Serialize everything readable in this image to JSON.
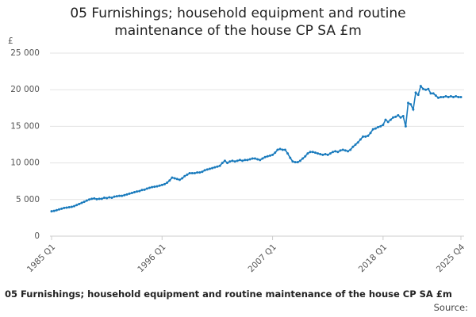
{
  "chart_data": {
    "type": "line",
    "title": "05 Furnishings; household equipment and routine maintenance of the house CP SA £m",
    "y_label": "£",
    "footer": "05 Furnishings; household equipment and routine maintenance of the house CP SA £m",
    "source": "Source:",
    "categories": [
      "1985 Q1",
      null,
      null,
      null,
      null,
      null,
      null,
      null,
      null,
      null,
      null,
      null,
      null,
      null,
      null,
      null,
      null,
      null,
      null,
      null,
      null,
      null,
      null,
      null,
      null,
      null,
      null,
      null,
      null,
      null,
      null,
      null,
      null,
      null,
      null,
      null,
      null,
      null,
      null,
      null,
      null,
      null,
      null,
      null,
      "1996 Q1",
      null,
      null,
      null,
      null,
      null,
      null,
      null,
      null,
      null,
      null,
      null,
      null,
      null,
      null,
      null,
      null,
      null,
      null,
      null,
      null,
      null,
      null,
      null,
      null,
      null,
      null,
      null,
      null,
      null,
      null,
      null,
      null,
      null,
      null,
      null,
      null,
      null,
      null,
      null,
      null,
      null,
      null,
      null,
      "2007 Q1",
      null,
      null,
      null,
      null,
      null,
      null,
      null,
      null,
      null,
      null,
      null,
      null,
      null,
      null,
      null,
      null,
      null,
      null,
      null,
      null,
      null,
      null,
      null,
      null,
      null,
      null,
      null,
      null,
      null,
      null,
      null,
      null,
      null,
      null,
      null,
      null,
      null,
      null,
      null,
      null,
      null,
      null,
      null,
      "2018 Q1",
      null,
      null,
      null,
      null,
      null,
      null,
      null,
      null,
      null,
      null,
      null,
      null,
      null,
      null,
      null,
      null,
      null,
      null,
      null,
      null,
      null,
      null,
      null,
      null,
      null,
      null,
      null,
      null,
      null,
      null,
      "2025 Q4"
    ],
    "series": [
      {
        "name": "05 Furnishings; household equipment and routine maintenance of the house CP SA £m",
        "color": "#1a7bbd",
        "values": [
          3400,
          3450,
          3550,
          3650,
          3750,
          3850,
          3900,
          3950,
          4000,
          4100,
          4250,
          4400,
          4550,
          4700,
          4850,
          5000,
          5100,
          5150,
          5050,
          5100,
          5100,
          5250,
          5200,
          5300,
          5250,
          5400,
          5450,
          5500,
          5500,
          5600,
          5700,
          5800,
          5900,
          6000,
          6100,
          6150,
          6300,
          6350,
          6500,
          6600,
          6700,
          6750,
          6800,
          6900,
          7000,
          7100,
          7300,
          7600,
          8000,
          7900,
          7800,
          7700,
          7900,
          8200,
          8400,
          8600,
          8600,
          8600,
          8700,
          8700,
          8800,
          9000,
          9100,
          9200,
          9300,
          9400,
          9500,
          9600,
          10000,
          10300,
          10000,
          10200,
          10300,
          10200,
          10300,
          10400,
          10300,
          10400,
          10400,
          10500,
          10600,
          10600,
          10500,
          10400,
          10600,
          10800,
          10900,
          11000,
          11100,
          11400,
          11800,
          11900,
          11800,
          11800,
          11300,
          10700,
          10200,
          10100,
          10100,
          10300,
          10600,
          10900,
          11300,
          11500,
          11500,
          11400,
          11300,
          11200,
          11100,
          11200,
          11100,
          11300,
          11500,
          11600,
          11500,
          11700,
          11800,
          11700,
          11600,
          11800,
          12200,
          12500,
          12800,
          13200,
          13600,
          13600,
          13700,
          14100,
          14600,
          14700,
          14900,
          15000,
          15200,
          15900,
          15600,
          15900,
          16200,
          16300,
          16500,
          16200,
          16400,
          15000,
          18200,
          18000,
          17300,
          19600,
          19300,
          20500,
          20100,
          20000,
          20100,
          19500,
          19500,
          19200,
          18900,
          19000,
          19000,
          19100,
          19000,
          19100,
          19000,
          19100,
          19000,
          19000
        ]
      }
    ],
    "ylim": [
      0,
      25000
    ],
    "yticks": [
      0,
      {
        "value": 5000,
        "label": "5 000"
      },
      {
        "value": 10000,
        "label": "10 000"
      },
      {
        "value": 15000,
        "label": "15 000"
      },
      {
        "value": 20000,
        "label": "20 000"
      },
      {
        "value": 25000,
        "label": "25 000"
      }
    ],
    "grid": true
  }
}
